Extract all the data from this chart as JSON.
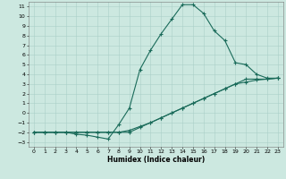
{
  "xlabel": "Humidex (Indice chaleur)",
  "bg_color": "#cce8e0",
  "grid_color": "#aacfc8",
  "line_color": "#1a6b5a",
  "xlim": [
    -0.5,
    23.5
  ],
  "ylim": [
    -3.5,
    11.5
  ],
  "xticks": [
    0,
    1,
    2,
    3,
    4,
    5,
    6,
    7,
    8,
    9,
    10,
    11,
    12,
    13,
    14,
    15,
    16,
    17,
    18,
    19,
    20,
    21,
    22,
    23
  ],
  "yticks": [
    -3,
    -2,
    -1,
    0,
    1,
    2,
    3,
    4,
    5,
    6,
    7,
    8,
    9,
    10,
    11
  ],
  "line1_x": [
    0,
    1,
    2,
    3,
    4,
    5,
    6,
    7,
    8,
    9,
    10,
    11,
    12,
    13,
    14,
    15,
    16,
    17,
    18,
    19,
    20,
    21,
    22,
    23
  ],
  "line1_y": [
    -2.0,
    -2.0,
    -2.0,
    -2.0,
    -2.2,
    -2.3,
    -2.5,
    -2.7,
    -1.2,
    0.5,
    4.5,
    6.5,
    8.2,
    9.7,
    11.2,
    11.2,
    10.3,
    8.5,
    7.5,
    5.2,
    5.0,
    4.0,
    3.6,
    3.6
  ],
  "line2_x": [
    0,
    1,
    2,
    3,
    4,
    5,
    6,
    7,
    8,
    9,
    10,
    11,
    12,
    13,
    14,
    15,
    16,
    17,
    18,
    19,
    20,
    21,
    22,
    23
  ],
  "line2_y": [
    -2.0,
    -2.0,
    -2.0,
    -2.0,
    -2.0,
    -2.0,
    -2.0,
    -2.0,
    -2.0,
    -2.0,
    -1.5,
    -1.0,
    -0.5,
    0.0,
    0.5,
    1.0,
    1.5,
    2.0,
    2.5,
    3.0,
    3.5,
    3.5,
    3.5,
    3.6
  ],
  "line3_x": [
    0,
    1,
    2,
    3,
    4,
    5,
    6,
    7,
    8,
    9,
    10,
    11,
    12,
    13,
    14,
    15,
    16,
    17,
    18,
    19,
    20,
    21,
    22,
    23
  ],
  "line3_y": [
    -2.0,
    -2.0,
    -2.0,
    -2.0,
    -2.0,
    -2.0,
    -2.0,
    -2.0,
    -2.0,
    -1.8,
    -1.4,
    -1.0,
    -0.5,
    0.0,
    0.5,
    1.0,
    1.5,
    2.0,
    2.5,
    3.0,
    3.2,
    3.4,
    3.5,
    3.6
  ]
}
